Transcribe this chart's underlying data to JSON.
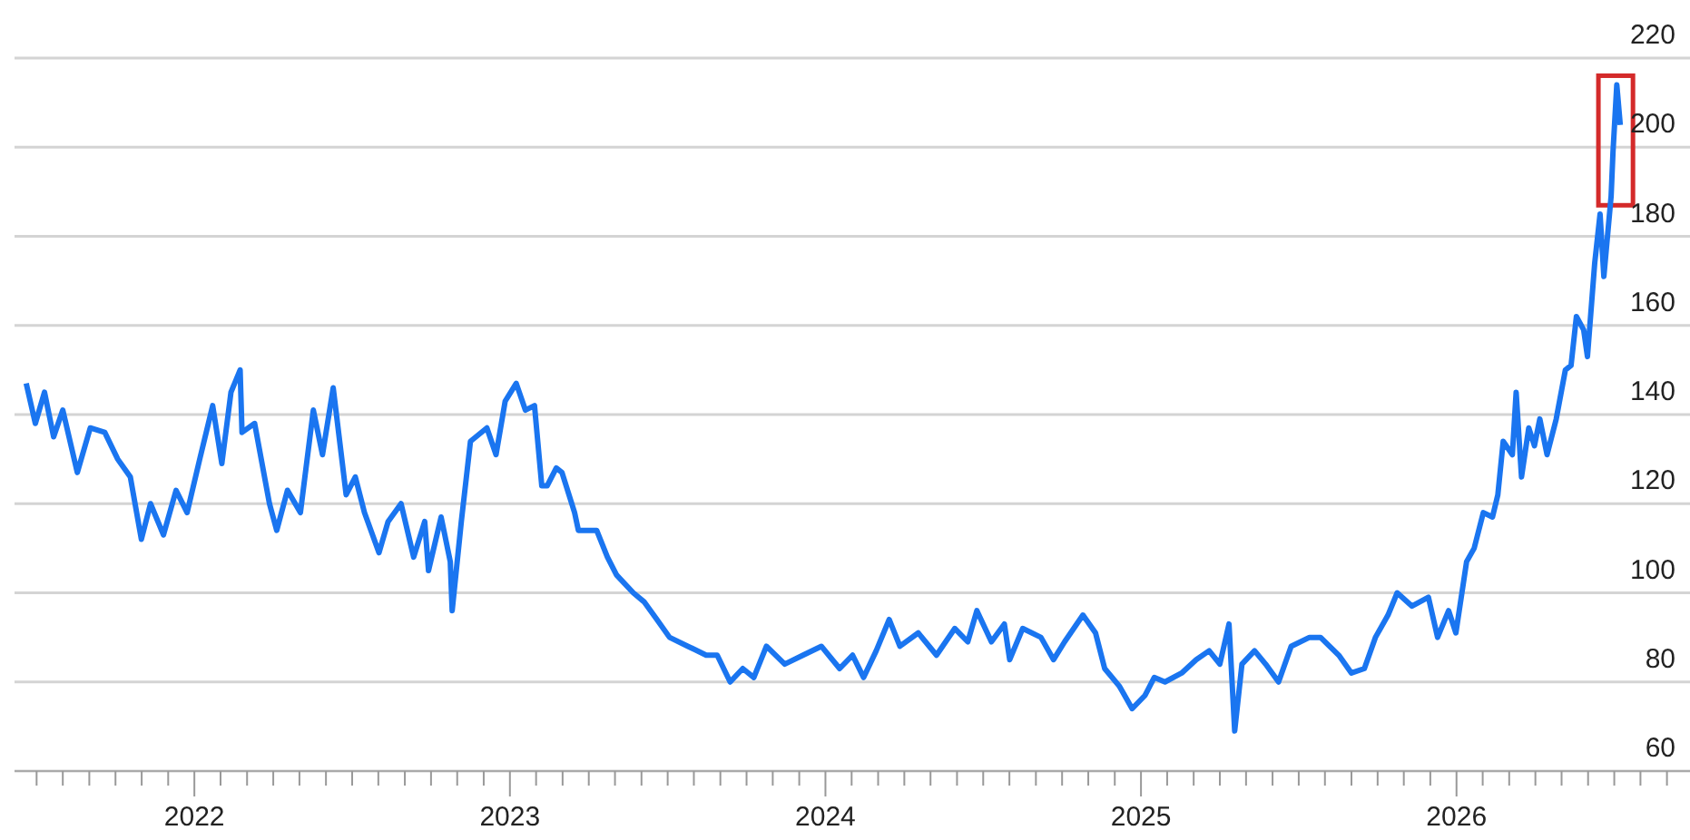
{
  "chart_data": {
    "type": "line",
    "grid": "y",
    "line_style": "solid",
    "marker": "none",
    "legend": false,
    "xlim": [
      2021.43,
      2026.74
    ],
    "ylim": [
      60,
      220
    ],
    "yticks": [
      60,
      80,
      100,
      120,
      140,
      160,
      180,
      200,
      220
    ],
    "xticks": [
      {
        "value": 2021.5,
        "label": null
      },
      {
        "value": 2021.583,
        "label": null
      },
      {
        "value": 2021.667,
        "label": null
      },
      {
        "value": 2021.75,
        "label": null
      },
      {
        "value": 2021.833,
        "label": null
      },
      {
        "value": 2021.917,
        "label": null
      },
      2022,
      {
        "value": 2022.083,
        "label": null
      },
      {
        "value": 2022.167,
        "label": null
      },
      {
        "value": 2022.25,
        "label": null
      },
      {
        "value": 2022.333,
        "label": null
      },
      {
        "value": 2022.417,
        "label": null
      },
      {
        "value": 2022.5,
        "label": null
      },
      {
        "value": 2022.583,
        "label": null
      },
      {
        "value": 2022.667,
        "label": null
      },
      {
        "value": 2022.75,
        "label": null
      },
      {
        "value": 2022.833,
        "label": null
      },
      {
        "value": 2022.917,
        "label": null
      },
      2023,
      {
        "value": 2023.083,
        "label": null
      },
      {
        "value": 2023.167,
        "label": null
      },
      {
        "value": 2023.25,
        "label": null
      },
      {
        "value": 2023.333,
        "label": null
      },
      {
        "value": 2023.417,
        "label": null
      },
      {
        "value": 2023.5,
        "label": null
      },
      {
        "value": 2023.583,
        "label": null
      },
      {
        "value": 2023.667,
        "label": null
      },
      {
        "value": 2023.75,
        "label": null
      },
      {
        "value": 2023.833,
        "label": null
      },
      {
        "value": 2023.917,
        "label": null
      },
      2024,
      {
        "value": 2024.083,
        "label": null
      },
      {
        "value": 2024.167,
        "label": null
      },
      {
        "value": 2024.25,
        "label": null
      },
      {
        "value": 2024.333,
        "label": null
      },
      {
        "value": 2024.417,
        "label": null
      },
      {
        "value": 2024.5,
        "label": null
      },
      {
        "value": 2024.583,
        "label": null
      },
      {
        "value": 2024.667,
        "label": null
      },
      {
        "value": 2024.75,
        "label": null
      },
      {
        "value": 2024.833,
        "label": null
      },
      {
        "value": 2024.917,
        "label": null
      },
      2025,
      {
        "value": 2025.083,
        "label": null
      },
      {
        "value": 2025.167,
        "label": null
      },
      {
        "value": 2025.25,
        "label": null
      },
      {
        "value": 2025.333,
        "label": null
      },
      {
        "value": 2025.417,
        "label": null
      },
      {
        "value": 2025.5,
        "label": null
      },
      {
        "value": 2025.583,
        "label": null
      },
      {
        "value": 2025.667,
        "label": null
      },
      {
        "value": 2025.75,
        "label": null
      },
      {
        "value": 2025.833,
        "label": null
      },
      {
        "value": 2025.917,
        "label": null
      },
      2026,
      {
        "value": 2026.083,
        "label": null
      },
      {
        "value": 2026.167,
        "label": null
      },
      {
        "value": 2026.25,
        "label": null
      },
      {
        "value": 2026.333,
        "label": null
      },
      {
        "value": 2026.417,
        "label": null
      },
      {
        "value": 2026.5,
        "label": null
      },
      {
        "value": 2026.583,
        "label": null
      },
      {
        "value": 2026.667,
        "label": null
      }
    ],
    "x": [
      2021.467,
      2021.496,
      2021.525,
      2021.554,
      2021.583,
      2021.629,
      2021.67,
      2021.716,
      2021.757,
      2021.797,
      2021.832,
      2021.861,
      2021.902,
      2021.942,
      2021.977,
      2022.017,
      2022.058,
      2022.087,
      2022.116,
      2022.145,
      2022.151,
      2022.191,
      2022.238,
      2022.261,
      2022.295,
      2022.336,
      2022.377,
      2022.406,
      2022.44,
      2022.481,
      2022.51,
      2022.539,
      2022.585,
      2022.614,
      2022.655,
      2022.695,
      2022.73,
      2022.742,
      2022.782,
      2022.811,
      2022.817,
      2022.846,
      2022.875,
      2022.927,
      2022.956,
      2022.985,
      2023.02,
      2023.049,
      2023.078,
      2023.101,
      2023.118,
      2023.147,
      2023.165,
      2023.205,
      2023.217,
      2023.275,
      2023.309,
      2023.338,
      2023.391,
      2023.425,
      2023.466,
      2023.506,
      2023.564,
      2023.622,
      2023.657,
      2023.698,
      2023.738,
      2023.773,
      2023.813,
      2023.871,
      2023.929,
      2023.987,
      2024.045,
      2024.086,
      2024.121,
      2024.161,
      2024.202,
      2024.236,
      2024.294,
      2024.352,
      2024.41,
      2024.451,
      2024.48,
      2024.526,
      2024.567,
      2024.584,
      2024.625,
      2024.683,
      2024.723,
      2024.758,
      2024.816,
      2024.856,
      2024.885,
      2024.932,
      2024.972,
      2025.013,
      2025.042,
      2025.076,
      2025.129,
      2025.175,
      2025.216,
      2025.25,
      2025.279,
      2025.297,
      2025.32,
      2025.36,
      2025.395,
      2025.436,
      2025.476,
      2025.534,
      2025.569,
      2025.627,
      2025.667,
      2025.708,
      2025.743,
      2025.783,
      2025.812,
      2025.859,
      2025.911,
      2025.94,
      2025.975,
      2025.998,
      2026.032,
      2026.056,
      2026.085,
      2026.114,
      2026.131,
      2026.148,
      2026.177,
      2026.189,
      2026.206,
      2026.229,
      2026.247,
      2026.264,
      2026.287,
      2026.316,
      2026.345,
      2026.363,
      2026.38,
      2026.403,
      2026.415,
      2026.438,
      2026.455,
      2026.467,
      2026.49,
      2026.496,
      2026.508,
      2026.519
    ],
    "series": [
      {
        "color": "#1a75f0",
        "values": [
          147,
          138,
          145,
          135,
          141,
          127,
          137,
          136,
          130,
          126,
          112,
          120,
          113,
          123,
          118,
          130,
          142,
          129,
          145,
          150,
          136,
          138,
          120,
          114,
          123,
          118,
          141,
          131,
          146,
          122,
          126,
          118,
          109,
          116,
          120,
          108,
          116,
          105,
          117,
          107,
          96,
          116,
          134,
          137,
          131,
          143,
          147,
          141,
          142,
          124,
          124,
          128,
          127,
          118,
          114,
          114,
          108,
          104,
          100,
          98,
          94,
          90,
          88,
          86,
          86,
          80,
          83,
          81,
          88,
          84,
          86,
          88,
          83,
          86,
          81,
          87,
          94,
          88,
          91,
          86,
          92,
          89,
          96,
          89,
          93,
          85,
          92,
          90,
          85,
          89,
          95,
          91,
          83,
          79,
          74,
          77,
          81,
          80,
          82,
          85,
          87,
          84,
          93,
          69,
          84,
          87,
          84,
          80,
          88,
          90,
          90,
          86,
          82,
          83,
          90,
          95,
          100,
          97,
          99,
          90,
          96,
          91,
          107,
          110,
          118,
          117,
          122,
          134,
          131,
          145,
          126,
          137,
          133,
          139,
          131,
          139,
          150,
          151,
          162,
          159,
          153,
          174,
          185,
          171,
          189,
          199,
          214,
          205
        ]
      }
    ]
  }
}
